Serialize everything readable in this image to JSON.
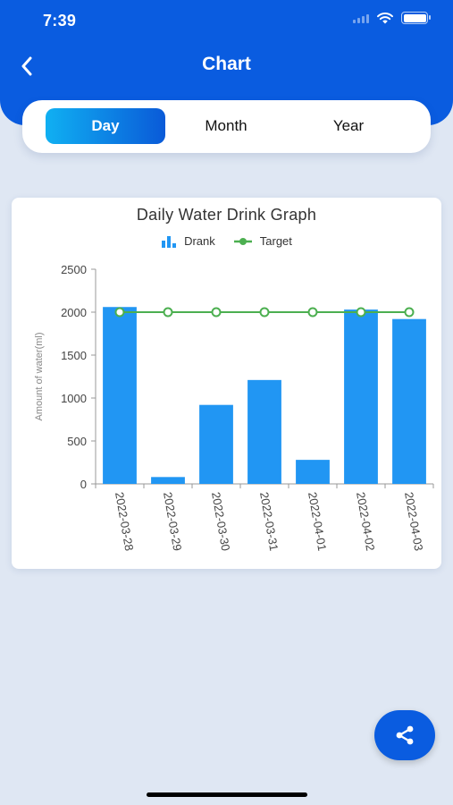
{
  "status_bar": {
    "time": "7:39"
  },
  "header": {
    "title": "Chart",
    "back_icon": "chevron-left-icon"
  },
  "tabs": [
    {
      "label": "Day",
      "active": true
    },
    {
      "label": "Month",
      "active": false
    },
    {
      "label": "Year",
      "active": false
    }
  ],
  "chart_data": {
    "type": "bar",
    "title": "Daily Water Drink Graph",
    "ylabel": "Amount of water(ml)",
    "xlabel": "",
    "categories": [
      "2022-03-28",
      "2022-03-29",
      "2022-03-30",
      "2022-03-31",
      "2022-04-01",
      "2022-04-02",
      "2022-04-03"
    ],
    "series": [
      {
        "name": "Drank",
        "type": "bar",
        "color": "#2196f3",
        "values": [
          2060,
          80,
          920,
          1210,
          280,
          2030,
          1920
        ]
      },
      {
        "name": "Target",
        "type": "line",
        "color": "#4caf50",
        "values": [
          2000,
          2000,
          2000,
          2000,
          2000,
          2000,
          2000
        ]
      }
    ],
    "ylim": [
      0,
      2500
    ],
    "yticks": [
      0,
      500,
      1000,
      1500,
      2000,
      2500
    ],
    "grid": false,
    "legend_position": "top"
  },
  "share_icon": "share-icon"
}
